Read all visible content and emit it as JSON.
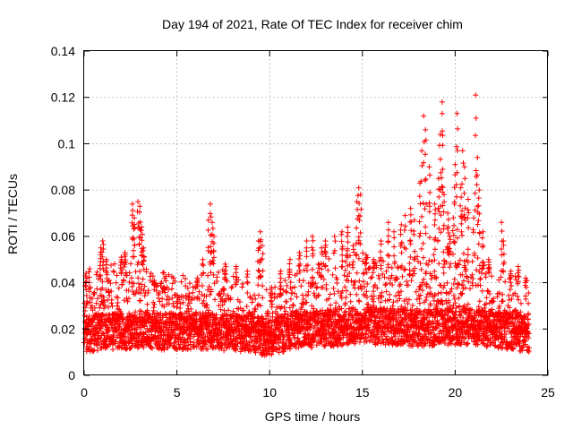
{
  "chart_data": {
    "type": "scatter",
    "title": "Day 194 of 2021, Rate Of TEC Index for receiver chim",
    "xlabel": "GPS time / hours",
    "ylabel": "ROTI / TECUs",
    "xlim": [
      0,
      24
    ],
    "ylim": [
      0,
      0.14
    ],
    "x_ticks": [
      0,
      5,
      10,
      15,
      20,
      25
    ],
    "y_ticks": [
      0,
      0.02,
      0.04,
      0.06,
      0.08,
      0.1,
      0.12,
      0.14
    ],
    "x_tick_labels": [
      "0",
      "5",
      "10",
      "15",
      "20",
      "25"
    ],
    "y_tick_labels": [
      "0",
      "0.02",
      "0.04",
      "0.06",
      "0.08",
      "0.1",
      "0.12",
      "0.14"
    ],
    "grid": true,
    "marker": "+",
    "color": "#ff0000",
    "series": [
      {
        "name": "ROTI",
        "outliers": [
          {
            "x": 0.1,
            "y": 0.044
          },
          {
            "x": 0.3,
            "y": 0.046
          },
          {
            "x": 0.9,
            "y": 0.055
          },
          {
            "x": 1.0,
            "y": 0.058
          },
          {
            "x": 1.2,
            "y": 0.05
          },
          {
            "x": 2.0,
            "y": 0.051
          },
          {
            "x": 2.2,
            "y": 0.053
          },
          {
            "x": 2.6,
            "y": 0.074
          },
          {
            "x": 2.7,
            "y": 0.068
          },
          {
            "x": 2.9,
            "y": 0.075
          },
          {
            "x": 3.0,
            "y": 0.073
          },
          {
            "x": 3.1,
            "y": 0.064
          },
          {
            "x": 3.2,
            "y": 0.055
          },
          {
            "x": 3.8,
            "y": 0.04
          },
          {
            "x": 4.3,
            "y": 0.038
          },
          {
            "x": 6.1,
            "y": 0.042
          },
          {
            "x": 6.4,
            "y": 0.05
          },
          {
            "x": 6.7,
            "y": 0.067
          },
          {
            "x": 6.8,
            "y": 0.074
          },
          {
            "x": 6.9,
            "y": 0.066
          },
          {
            "x": 7.0,
            "y": 0.06
          },
          {
            "x": 7.6,
            "y": 0.048
          },
          {
            "x": 8.2,
            "y": 0.047
          },
          {
            "x": 8.8,
            "y": 0.045
          },
          {
            "x": 9.4,
            "y": 0.058
          },
          {
            "x": 9.5,
            "y": 0.062
          },
          {
            "x": 9.6,
            "y": 0.056
          },
          {
            "x": 10.1,
            "y": 0.038
          },
          {
            "x": 10.6,
            "y": 0.045
          },
          {
            "x": 11.1,
            "y": 0.05
          },
          {
            "x": 11.6,
            "y": 0.053
          },
          {
            "x": 12.0,
            "y": 0.058
          },
          {
            "x": 12.3,
            "y": 0.06
          },
          {
            "x": 12.8,
            "y": 0.055
          },
          {
            "x": 13.0,
            "y": 0.058
          },
          {
            "x": 13.5,
            "y": 0.06
          },
          {
            "x": 13.9,
            "y": 0.062
          },
          {
            "x": 14.2,
            "y": 0.064
          },
          {
            "x": 14.5,
            "y": 0.056
          },
          {
            "x": 14.7,
            "y": 0.075
          },
          {
            "x": 14.8,
            "y": 0.081
          },
          {
            "x": 14.9,
            "y": 0.078
          },
          {
            "x": 15.2,
            "y": 0.052
          },
          {
            "x": 15.6,
            "y": 0.05
          },
          {
            "x": 16.0,
            "y": 0.058
          },
          {
            "x": 16.4,
            "y": 0.066
          },
          {
            "x": 16.7,
            "y": 0.062
          },
          {
            "x": 17.1,
            "y": 0.065
          },
          {
            "x": 17.3,
            "y": 0.069
          },
          {
            "x": 17.6,
            "y": 0.072
          },
          {
            "x": 17.8,
            "y": 0.067
          },
          {
            "x": 18.1,
            "y": 0.083
          },
          {
            "x": 18.2,
            "y": 0.097
          },
          {
            "x": 18.3,
            "y": 0.112
          },
          {
            "x": 18.4,
            "y": 0.106
          },
          {
            "x": 18.6,
            "y": 0.09
          },
          {
            "x": 18.9,
            "y": 0.074
          },
          {
            "x": 19.1,
            "y": 0.085
          },
          {
            "x": 19.2,
            "y": 0.104
          },
          {
            "x": 19.3,
            "y": 0.113
          },
          {
            "x": 19.3,
            "y": 0.118
          },
          {
            "x": 19.4,
            "y": 0.078
          },
          {
            "x": 19.6,
            "y": 0.07
          },
          {
            "x": 19.7,
            "y": 0.06
          },
          {
            "x": 19.9,
            "y": 0.068
          },
          {
            "x": 20.0,
            "y": 0.091
          },
          {
            "x": 20.1,
            "y": 0.113
          },
          {
            "x": 20.3,
            "y": 0.081
          },
          {
            "x": 20.4,
            "y": 0.097
          },
          {
            "x": 20.5,
            "y": 0.09
          },
          {
            "x": 20.7,
            "y": 0.076
          },
          {
            "x": 21.0,
            "y": 0.068
          },
          {
            "x": 21.1,
            "y": 0.121
          },
          {
            "x": 21.2,
            "y": 0.094
          },
          {
            "x": 21.3,
            "y": 0.08
          },
          {
            "x": 21.5,
            "y": 0.062
          },
          {
            "x": 21.8,
            "y": 0.05
          },
          {
            "x": 22.5,
            "y": 0.066
          },
          {
            "x": 22.6,
            "y": 0.058
          },
          {
            "x": 23.0,
            "y": 0.045
          },
          {
            "x": 23.4,
            "y": 0.047
          },
          {
            "x": 23.8,
            "y": 0.042
          }
        ],
        "band": [
          {
            "x": 0,
            "base": 0.018,
            "top": 0.032
          },
          {
            "x": 1,
            "base": 0.019,
            "top": 0.04
          },
          {
            "x": 2,
            "base": 0.019,
            "top": 0.042
          },
          {
            "x": 3,
            "base": 0.02,
            "top": 0.045
          },
          {
            "x": 4,
            "base": 0.019,
            "top": 0.037
          },
          {
            "x": 5,
            "base": 0.019,
            "top": 0.036
          },
          {
            "x": 6,
            "base": 0.019,
            "top": 0.036
          },
          {
            "x": 7,
            "base": 0.019,
            "top": 0.04
          },
          {
            "x": 8,
            "base": 0.018,
            "top": 0.035
          },
          {
            "x": 9,
            "base": 0.018,
            "top": 0.034
          },
          {
            "x": 10,
            "base": 0.016,
            "top": 0.028
          },
          {
            "x": 11,
            "base": 0.019,
            "top": 0.036
          },
          {
            "x": 12,
            "base": 0.02,
            "top": 0.04
          },
          {
            "x": 13,
            "base": 0.02,
            "top": 0.042
          },
          {
            "x": 14,
            "base": 0.021,
            "top": 0.044
          },
          {
            "x": 15,
            "base": 0.022,
            "top": 0.045
          },
          {
            "x": 16,
            "base": 0.021,
            "top": 0.042
          },
          {
            "x": 17,
            "base": 0.021,
            "top": 0.043
          },
          {
            "x": 18,
            "base": 0.02,
            "top": 0.044
          },
          {
            "x": 19,
            "base": 0.021,
            "top": 0.045
          },
          {
            "x": 20,
            "base": 0.021,
            "top": 0.046
          },
          {
            "x": 21,
            "base": 0.021,
            "top": 0.044
          },
          {
            "x": 22,
            "base": 0.02,
            "top": 0.038
          },
          {
            "x": 23,
            "base": 0.019,
            "top": 0.036
          },
          {
            "x": 24,
            "base": 0.018,
            "top": 0.034
          }
        ],
        "y_min_observed": 0.003,
        "point_count_estimate": 4200
      }
    ]
  }
}
